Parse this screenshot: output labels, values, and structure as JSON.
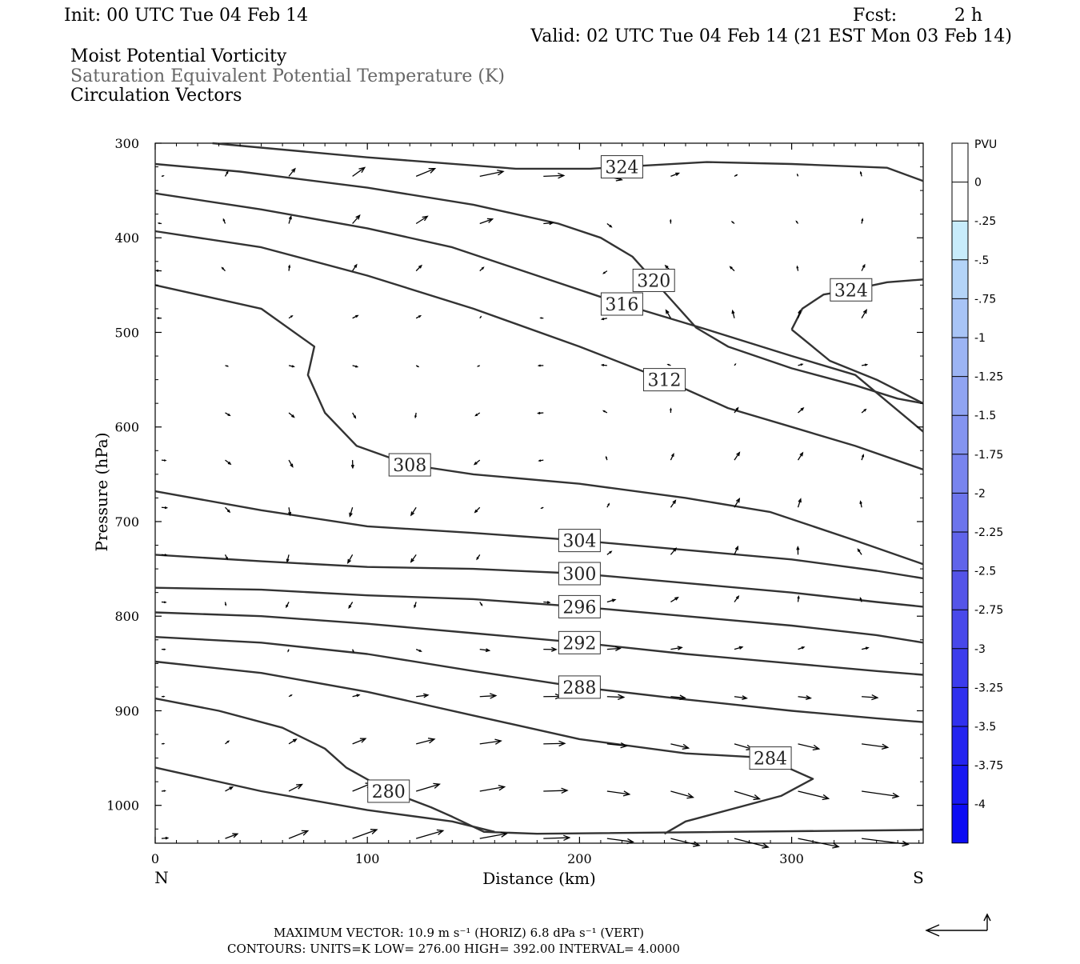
{
  "header": {
    "init": "Init: 00 UTC Tue 04 Feb 14",
    "fcst_label": "Fcst:",
    "fcst_value": "2 h",
    "valid": "Valid: 02 UTC Tue 04 Feb 14 (21 EST Mon 03 Feb 14)",
    "line1": "Moist Potential Vorticity",
    "line2": "Saturation Equivalent Potential Temperature (K)",
    "line3": "Circulation Vectors"
  },
  "footer": {
    "max_vector": "MAXIMUM VECTOR:  10.9 m s⁻¹ (HORIZ)          6.8 dPa s⁻¹ (VERT)",
    "contours": "CONTOURS:  UNITS=K  LOW=  276.00        HIGH=  392.00        INTERVAL=    4.0000"
  },
  "chart_data": {
    "type": "cross-section contour",
    "xlabel": "Distance (km)",
    "ylabel": "Pressure (hPa)",
    "xlim": [
      0,
      362
    ],
    "ylim": [
      1040,
      300
    ],
    "x_ticks": [
      "0",
      "100",
      "200",
      "300"
    ],
    "x_tick_values": [
      0,
      100,
      200,
      300
    ],
    "y_ticks": [
      "300",
      "400",
      "500",
      "600",
      "700",
      "800",
      "900",
      "1000"
    ],
    "y_tick_values": [
      300,
      400,
      500,
      600,
      700,
      800,
      900,
      1000
    ],
    "left_end_label": "N",
    "right_end_label": "S",
    "colorbar": {
      "unit": "PVU",
      "labels": [
        "0",
        "-.25",
        "-.5",
        "-.75",
        "-1",
        "-1.25",
        "-1.5",
        "-1.75",
        "-2",
        "-2.25",
        "-2.5",
        "-2.75",
        "-3",
        "-3.25",
        "-3.5",
        "-3.75",
        "-4"
      ],
      "colors": [
        "#ffffff",
        "#ffffff",
        "#c8ecfb",
        "#b4d4f8",
        "#a8c4f6",
        "#9cb4f4",
        "#90a4f2",
        "#8494f0",
        "#7884ee",
        "#6c74ec",
        "#6064ea",
        "#5454e8",
        "#4848ea",
        "#3c3cec",
        "#3030ee",
        "#2424f0",
        "#1818f2",
        "#0c0cf4"
      ]
    },
    "contours": [
      {
        "value": 324,
        "label": "324",
        "points": [
          [
            27,
            300
          ],
          [
            100,
            315
          ],
          [
            170,
            327
          ],
          [
            205,
            327
          ],
          [
            220,
            325
          ],
          [
            260,
            320
          ],
          [
            300,
            322
          ],
          [
            345,
            326
          ],
          [
            362,
            340
          ]
        ]
      },
      {
        "value": 324,
        "label": "324",
        "points": [
          [
            300,
            497
          ],
          [
            305,
            475
          ],
          [
            315,
            460
          ],
          [
            328,
            455
          ],
          [
            345,
            447
          ],
          [
            362,
            444
          ]
        ]
      },
      {
        "value": 320,
        "label": "320",
        "points": [
          [
            0,
            322
          ],
          [
            40,
            330
          ],
          [
            100,
            347
          ],
          [
            150,
            365
          ],
          [
            190,
            385
          ],
          [
            210,
            400
          ],
          [
            225,
            420
          ],
          [
            235,
            445
          ],
          [
            245,
            470
          ],
          [
            255,
            495
          ],
          [
            270,
            515
          ],
          [
            300,
            538
          ],
          [
            330,
            556
          ],
          [
            350,
            570
          ],
          [
            362,
            575
          ]
        ]
      },
      {
        "value": 324,
        "label": "",
        "points": [
          [
            300,
            497
          ],
          [
            318,
            530
          ],
          [
            340,
            550
          ],
          [
            362,
            575
          ]
        ]
      },
      {
        "value": 316,
        "label": "316",
        "points": [
          [
            0,
            353
          ],
          [
            50,
            370
          ],
          [
            100,
            390
          ],
          [
            140,
            410
          ],
          [
            180,
            440
          ],
          [
            220,
            470
          ],
          [
            260,
            497
          ],
          [
            300,
            525
          ],
          [
            330,
            545
          ],
          [
            362,
            605
          ]
        ]
      },
      {
        "value": 312,
        "label": "312",
        "points": [
          [
            0,
            393
          ],
          [
            50,
            410
          ],
          [
            100,
            440
          ],
          [
            150,
            475
          ],
          [
            200,
            515
          ],
          [
            240,
            550
          ],
          [
            270,
            580
          ],
          [
            300,
            600
          ],
          [
            330,
            620
          ],
          [
            362,
            645
          ]
        ]
      },
      {
        "value": 308,
        "label": "308",
        "points": [
          [
            0,
            450
          ],
          [
            50,
            475
          ],
          [
            75,
            515
          ],
          [
            72,
            545
          ],
          [
            80,
            585
          ],
          [
            95,
            620
          ],
          [
            120,
            640
          ],
          [
            150,
            650
          ],
          [
            200,
            660
          ],
          [
            250,
            675
          ],
          [
            290,
            690
          ],
          [
            330,
            720
          ],
          [
            362,
            745
          ]
        ]
      },
      {
        "value": 304,
        "label": "304",
        "points": [
          [
            0,
            668
          ],
          [
            50,
            688
          ],
          [
            100,
            705
          ],
          [
            150,
            712
          ],
          [
            200,
            720
          ],
          [
            250,
            730
          ],
          [
            300,
            740
          ],
          [
            340,
            752
          ],
          [
            362,
            760
          ]
        ]
      },
      {
        "value": 300,
        "label": "300",
        "points": [
          [
            0,
            735
          ],
          [
            50,
            742
          ],
          [
            100,
            748
          ],
          [
            150,
            750
          ],
          [
            200,
            755
          ],
          [
            250,
            765
          ],
          [
            300,
            775
          ],
          [
            340,
            785
          ],
          [
            362,
            790
          ]
        ]
      },
      {
        "value": 296,
        "label": "296",
        "points": [
          [
            0,
            770
          ],
          [
            50,
            772
          ],
          [
            100,
            778
          ],
          [
            150,
            782
          ],
          [
            200,
            790
          ],
          [
            250,
            800
          ],
          [
            300,
            810
          ],
          [
            340,
            820
          ],
          [
            362,
            828
          ]
        ]
      },
      {
        "value": 292,
        "label": "292",
        "points": [
          [
            0,
            796
          ],
          [
            50,
            800
          ],
          [
            100,
            808
          ],
          [
            150,
            818
          ],
          [
            200,
            828
          ],
          [
            250,
            840
          ],
          [
            300,
            850
          ],
          [
            340,
            858
          ],
          [
            362,
            862
          ]
        ]
      },
      {
        "value": 288,
        "label": "288",
        "points": [
          [
            0,
            822
          ],
          [
            50,
            828
          ],
          [
            100,
            840
          ],
          [
            150,
            858
          ],
          [
            200,
            875
          ],
          [
            250,
            888
          ],
          [
            300,
            900
          ],
          [
            340,
            908
          ],
          [
            362,
            912
          ]
        ]
      },
      {
        "value": 284,
        "label": "284",
        "points": [
          [
            0,
            848
          ],
          [
            50,
            860
          ],
          [
            100,
            880
          ],
          [
            150,
            905
          ],
          [
            200,
            930
          ],
          [
            250,
            945
          ],
          [
            290,
            950
          ],
          [
            300,
            962
          ],
          [
            310,
            972
          ],
          [
            295,
            990
          ],
          [
            250,
            1017
          ],
          [
            240,
            1030
          ]
        ]
      },
      {
        "value": 280,
        "label": "280",
        "points": [
          [
            0,
            887
          ],
          [
            30,
            900
          ],
          [
            60,
            918
          ],
          [
            80,
            940
          ],
          [
            90,
            960
          ],
          [
            110,
            985
          ],
          [
            130,
            1002
          ],
          [
            140,
            1012
          ],
          [
            155,
            1028
          ],
          [
            180,
            1030
          ],
          [
            362,
            1026
          ]
        ]
      },
      {
        "value": 276,
        "label": "",
        "points": [
          [
            0,
            960
          ],
          [
            50,
            985
          ],
          [
            100,
            1005
          ],
          [
            140,
            1017
          ],
          [
            160,
            1028
          ]
        ]
      }
    ],
    "vectors_note": "circulation vectors (u, w) sampled on a regular grid"
  }
}
